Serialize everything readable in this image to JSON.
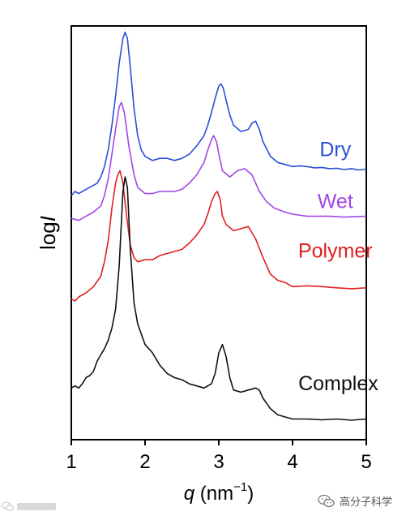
{
  "chart_data": {
    "type": "line",
    "xlabel_symbol": "q",
    "xlabel_unit": " (nm",
    "xlabel_exp": "−1",
    "xlabel_close": ")",
    "ylabel_prefix": "log",
    "ylabel_symbol": "I",
    "xlim": [
      1,
      5
    ],
    "ylim": [
      0,
      10
    ],
    "x_ticks": [
      1,
      2,
      3,
      4,
      5
    ],
    "x_tick_labels": [
      "1",
      "2",
      "3",
      "4",
      "5"
    ],
    "y_ticks_visible": false,
    "grid": false,
    "legend": "inline labels at right end of each curve",
    "series": [
      {
        "name": "Dry",
        "color": "#2a4fd6",
        "label_anchor": [
          4.58,
          6.85
        ],
        "points": [
          [
            1.0,
            5.9
          ],
          [
            1.05,
            6.0
          ],
          [
            1.1,
            5.95
          ],
          [
            1.2,
            6.05
          ],
          [
            1.3,
            6.15
          ],
          [
            1.35,
            6.2
          ],
          [
            1.4,
            6.35
          ],
          [
            1.45,
            6.6
          ],
          [
            1.5,
            7.0
          ],
          [
            1.55,
            7.6
          ],
          [
            1.6,
            8.3
          ],
          [
            1.65,
            9.1
          ],
          [
            1.7,
            9.7
          ],
          [
            1.73,
            9.85
          ],
          [
            1.76,
            9.7
          ],
          [
            1.8,
            9.0
          ],
          [
            1.85,
            8.0
          ],
          [
            1.9,
            7.35
          ],
          [
            1.95,
            7.0
          ],
          [
            2.0,
            6.85
          ],
          [
            2.1,
            6.75
          ],
          [
            2.2,
            6.8
          ],
          [
            2.3,
            6.8
          ],
          [
            2.4,
            6.75
          ],
          [
            2.5,
            6.8
          ],
          [
            2.6,
            6.9
          ],
          [
            2.7,
            7.1
          ],
          [
            2.8,
            7.35
          ],
          [
            2.85,
            7.6
          ],
          [
            2.9,
            7.9
          ],
          [
            2.95,
            8.25
          ],
          [
            3.0,
            8.55
          ],
          [
            3.03,
            8.6
          ],
          [
            3.06,
            8.5
          ],
          [
            3.1,
            8.2
          ],
          [
            3.15,
            7.85
          ],
          [
            3.2,
            7.6
          ],
          [
            3.3,
            7.45
          ],
          [
            3.4,
            7.5
          ],
          [
            3.45,
            7.65
          ],
          [
            3.5,
            7.7
          ],
          [
            3.55,
            7.5
          ],
          [
            3.6,
            7.2
          ],
          [
            3.7,
            6.85
          ],
          [
            3.8,
            6.7
          ],
          [
            3.9,
            6.65
          ],
          [
            4.0,
            6.6
          ],
          [
            4.1,
            6.62
          ],
          [
            4.2,
            6.6
          ],
          [
            4.3,
            6.57
          ],
          [
            4.4,
            6.58
          ],
          [
            4.5,
            6.55
          ],
          [
            4.6,
            6.56
          ],
          [
            4.7,
            6.53
          ],
          [
            4.8,
            6.55
          ],
          [
            4.9,
            6.52
          ],
          [
            5.0,
            6.54
          ]
        ]
      },
      {
        "name": "Wet",
        "color": "#a347e6",
        "label_anchor": [
          4.58,
          5.6
        ],
        "points": [
          [
            1.0,
            5.35
          ],
          [
            1.1,
            5.3
          ],
          [
            1.2,
            5.4
          ],
          [
            1.3,
            5.5
          ],
          [
            1.4,
            5.65
          ],
          [
            1.45,
            5.9
          ],
          [
            1.5,
            6.3
          ],
          [
            1.55,
            6.9
          ],
          [
            1.6,
            7.5
          ],
          [
            1.65,
            8.05
          ],
          [
            1.68,
            8.15
          ],
          [
            1.72,
            7.9
          ],
          [
            1.78,
            7.1
          ],
          [
            1.85,
            6.4
          ],
          [
            1.9,
            6.1
          ],
          [
            2.0,
            5.95
          ],
          [
            2.1,
            5.95
          ],
          [
            2.2,
            6.0
          ],
          [
            2.3,
            6.0
          ],
          [
            2.4,
            6.0
          ],
          [
            2.5,
            6.05
          ],
          [
            2.6,
            6.2
          ],
          [
            2.7,
            6.4
          ],
          [
            2.8,
            6.7
          ],
          [
            2.85,
            7.0
          ],
          [
            2.9,
            7.25
          ],
          [
            2.93,
            7.35
          ],
          [
            2.97,
            7.2
          ],
          [
            3.0,
            6.9
          ],
          [
            3.05,
            6.5
          ],
          [
            3.15,
            6.35
          ],
          [
            3.25,
            6.5
          ],
          [
            3.35,
            6.55
          ],
          [
            3.45,
            6.4
          ],
          [
            3.55,
            6.0
          ],
          [
            3.65,
            5.75
          ],
          [
            3.75,
            5.6
          ],
          [
            3.9,
            5.5
          ],
          [
            4.0,
            5.45
          ],
          [
            4.2,
            5.4
          ],
          [
            4.5,
            5.4
          ],
          [
            4.7,
            5.38
          ],
          [
            5.0,
            5.4
          ]
        ]
      },
      {
        "name": "Polymer",
        "color": "#e02020",
        "label_anchor": [
          4.58,
          4.4
        ],
        "points": [
          [
            1.0,
            3.4
          ],
          [
            1.05,
            3.35
          ],
          [
            1.1,
            3.45
          ],
          [
            1.2,
            3.55
          ],
          [
            1.3,
            3.7
          ],
          [
            1.4,
            3.95
          ],
          [
            1.45,
            4.3
          ],
          [
            1.5,
            4.8
          ],
          [
            1.55,
            5.6
          ],
          [
            1.6,
            6.2
          ],
          [
            1.63,
            6.4
          ],
          [
            1.66,
            6.5
          ],
          [
            1.7,
            6.2
          ],
          [
            1.75,
            5.4
          ],
          [
            1.8,
            4.7
          ],
          [
            1.85,
            4.4
          ],
          [
            1.9,
            4.3
          ],
          [
            2.0,
            4.35
          ],
          [
            2.1,
            4.35
          ],
          [
            2.2,
            4.45
          ],
          [
            2.3,
            4.5
          ],
          [
            2.4,
            4.55
          ],
          [
            2.5,
            4.6
          ],
          [
            2.6,
            4.75
          ],
          [
            2.7,
            4.95
          ],
          [
            2.8,
            5.2
          ],
          [
            2.85,
            5.45
          ],
          [
            2.9,
            5.75
          ],
          [
            2.95,
            5.95
          ],
          [
            2.98,
            6.0
          ],
          [
            3.02,
            5.8
          ],
          [
            3.05,
            5.4
          ],
          [
            3.1,
            5.2
          ],
          [
            3.2,
            5.05
          ],
          [
            3.3,
            5.1
          ],
          [
            3.4,
            5.15
          ],
          [
            3.45,
            5.0
          ],
          [
            3.5,
            4.85
          ],
          [
            3.6,
            4.4
          ],
          [
            3.7,
            4.0
          ],
          [
            3.8,
            3.85
          ],
          [
            3.9,
            3.8
          ],
          [
            4.0,
            3.7
          ],
          [
            4.2,
            3.72
          ],
          [
            4.4,
            3.7
          ],
          [
            4.6,
            3.67
          ],
          [
            4.8,
            3.65
          ],
          [
            5.0,
            3.67
          ]
        ]
      },
      {
        "name": "Complex",
        "color": "#111111",
        "label_anchor": [
          4.62,
          1.2
        ],
        "points": [
          [
            1.0,
            1.25
          ],
          [
            1.05,
            1.3
          ],
          [
            1.1,
            1.25
          ],
          [
            1.15,
            1.35
          ],
          [
            1.2,
            1.5
          ],
          [
            1.25,
            1.55
          ],
          [
            1.3,
            1.65
          ],
          [
            1.35,
            1.9
          ],
          [
            1.4,
            2.05
          ],
          [
            1.45,
            2.2
          ],
          [
            1.5,
            2.4
          ],
          [
            1.55,
            2.7
          ],
          [
            1.6,
            3.15
          ],
          [
            1.65,
            4.2
          ],
          [
            1.7,
            6.0
          ],
          [
            1.73,
            6.35
          ],
          [
            1.76,
            6.1
          ],
          [
            1.8,
            4.6
          ],
          [
            1.85,
            3.3
          ],
          [
            1.9,
            2.8
          ],
          [
            1.95,
            2.55
          ],
          [
            2.0,
            2.3
          ],
          [
            2.1,
            2.1
          ],
          [
            2.2,
            1.8
          ],
          [
            2.3,
            1.6
          ],
          [
            2.4,
            1.5
          ],
          [
            2.5,
            1.45
          ],
          [
            2.6,
            1.35
          ],
          [
            2.7,
            1.3
          ],
          [
            2.8,
            1.25
          ],
          [
            2.9,
            1.35
          ],
          [
            2.95,
            1.6
          ],
          [
            3.0,
            2.1
          ],
          [
            3.05,
            2.3
          ],
          [
            3.1,
            2.0
          ],
          [
            3.15,
            1.5
          ],
          [
            3.2,
            1.2
          ],
          [
            3.3,
            1.15
          ],
          [
            3.4,
            1.2
          ],
          [
            3.5,
            1.25
          ],
          [
            3.55,
            1.2
          ],
          [
            3.6,
            1.0
          ],
          [
            3.7,
            0.75
          ],
          [
            3.8,
            0.6
          ],
          [
            3.9,
            0.55
          ],
          [
            4.0,
            0.5
          ],
          [
            4.2,
            0.5
          ],
          [
            4.4,
            0.48
          ],
          [
            4.6,
            0.5
          ],
          [
            4.8,
            0.47
          ],
          [
            5.0,
            0.5
          ]
        ]
      }
    ]
  },
  "watermark": {
    "right_text": "高分子科学"
  }
}
